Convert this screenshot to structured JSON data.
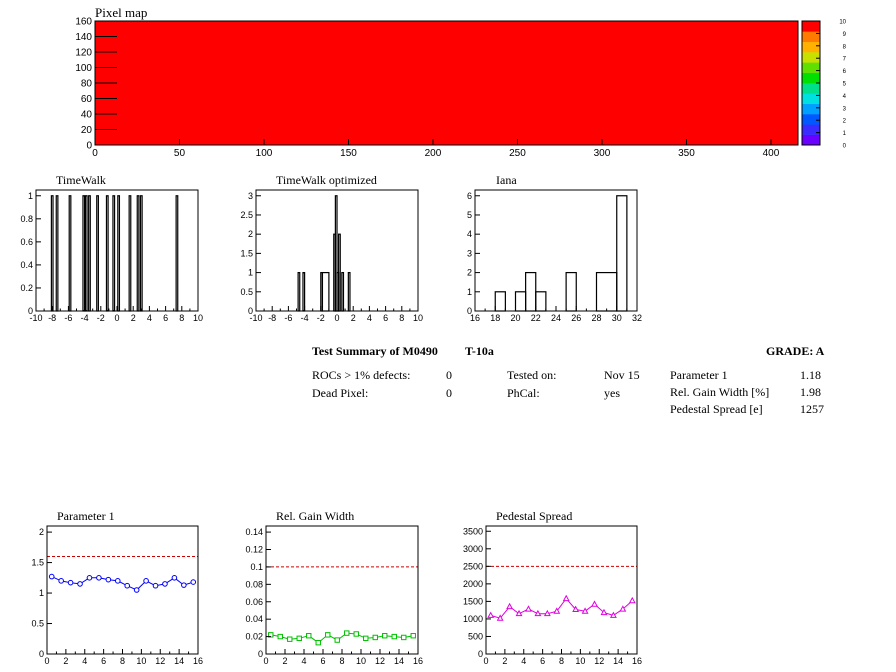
{
  "pixel_map": {
    "title": "Pixel map",
    "fill_color": "#ff0000",
    "x_ticks": [
      0,
      50,
      100,
      150,
      200,
      250,
      300,
      350,
      400
    ],
    "y_ticks": [
      0,
      20,
      40,
      60,
      80,
      100,
      120,
      140,
      160
    ],
    "xlim": [
      0,
      416
    ],
    "ylim": [
      0,
      160
    ],
    "palette_ticks": [
      0,
      1,
      2,
      3,
      4,
      5,
      6,
      7,
      8,
      9,
      10
    ],
    "palette_colors": [
      "#6a00ff",
      "#3a2cff",
      "#0059ff",
      "#00a0ff",
      "#00e0e0",
      "#00e08a",
      "#00e000",
      "#60e000",
      "#c8e000",
      "#ffb000",
      "#ff7a00",
      "#ff0000"
    ]
  },
  "chart_data": [
    {
      "type": "bar",
      "title": "TimeWalk",
      "xlim": [
        -10,
        10
      ],
      "ylim": [
        0,
        1.05
      ],
      "x_ticks": [
        -10,
        -8,
        -6,
        -4,
        -2,
        0,
        2,
        4,
        6,
        8,
        10
      ],
      "y_ticks": [
        0,
        0.2,
        0.4,
        0.6,
        0.8,
        1
      ],
      "y_tick_labels": [
        "0",
        "0.2",
        "0.4",
        "0.6",
        "0.8",
        "1"
      ],
      "bins": [
        {
          "x0": -8.1,
          "x1": -7.9,
          "y": 1
        },
        {
          "x0": -7.5,
          "x1": -7.3,
          "y": 1
        },
        {
          "x0": -5.9,
          "x1": -5.7,
          "y": 1
        },
        {
          "x0": -4.2,
          "x1": -4.0,
          "y": 1
        },
        {
          "x0": -3.9,
          "x1": -3.7,
          "y": 1
        },
        {
          "x0": -3.5,
          "x1": -3.3,
          "y": 1
        },
        {
          "x0": -2.5,
          "x1": -2.3,
          "y": 1
        },
        {
          "x0": -1.3,
          "x1": -1.1,
          "y": 1
        },
        {
          "x0": -0.5,
          "x1": -0.3,
          "y": 1
        },
        {
          "x0": 0.1,
          "x1": 0.3,
          "y": 1
        },
        {
          "x0": 1.5,
          "x1": 1.7,
          "y": 1
        },
        {
          "x0": 2.5,
          "x1": 2.7,
          "y": 1
        },
        {
          "x0": 2.9,
          "x1": 3.1,
          "y": 1
        },
        {
          "x0": 7.3,
          "x1": 7.5,
          "y": 1
        }
      ]
    },
    {
      "type": "bar",
      "title": "TimeWalk optimized",
      "xlim": [
        -10,
        10
      ],
      "ylim": [
        0,
        3.15
      ],
      "x_ticks": [
        -10,
        -8,
        -6,
        -4,
        -2,
        0,
        2,
        4,
        6,
        8,
        10
      ],
      "y_ticks": [
        0,
        0.5,
        1,
        1.5,
        2,
        2.5,
        3
      ],
      "y_tick_labels": [
        "0",
        "0.5",
        "1",
        "1.5",
        "2",
        "2.5",
        "3"
      ],
      "bins": [
        {
          "x0": -4.8,
          "x1": -4.6,
          "y": 1
        },
        {
          "x0": -4.2,
          "x1": -4.0,
          "y": 1
        },
        {
          "x0": -2.0,
          "x1": -1.8,
          "y": 1
        },
        {
          "x0": -1.8,
          "x1": -1.0,
          "y": 1
        },
        {
          "x0": -0.4,
          "x1": -0.2,
          "y": 2
        },
        {
          "x0": -0.2,
          "x1": 0.0,
          "y": 3
        },
        {
          "x0": 0.0,
          "x1": 0.2,
          "y": 1
        },
        {
          "x0": 0.2,
          "x1": 0.4,
          "y": 2
        },
        {
          "x0": 0.6,
          "x1": 0.8,
          "y": 1
        },
        {
          "x0": 1.4,
          "x1": 1.6,
          "y": 1
        }
      ]
    },
    {
      "type": "bar",
      "title": "Iana",
      "xlim": [
        16,
        32
      ],
      "ylim": [
        0,
        6.3
      ],
      "x_ticks": [
        16,
        18,
        20,
        22,
        24,
        26,
        28,
        30,
        32
      ],
      "y_ticks": [
        0,
        1,
        2,
        3,
        4,
        5,
        6
      ],
      "y_tick_labels": [
        "0",
        "1",
        "2",
        "3",
        "4",
        "5",
        "6"
      ],
      "bins": [
        {
          "x0": 18,
          "x1": 19,
          "y": 1
        },
        {
          "x0": 20,
          "x1": 21,
          "y": 1
        },
        {
          "x0": 21,
          "x1": 22,
          "y": 2
        },
        {
          "x0": 22,
          "x1": 23,
          "y": 1
        },
        {
          "x0": 25,
          "x1": 26,
          "y": 2
        },
        {
          "x0": 28,
          "x1": 30,
          "y": 2
        },
        {
          "x0": 30,
          "x1": 31,
          "y": 6
        }
      ]
    },
    {
      "type": "line",
      "title": "Parameter 1",
      "xlim": [
        0,
        16
      ],
      "ylim": [
        0,
        2.1
      ],
      "x_ticks": [
        0,
        2,
        4,
        6,
        8,
        10,
        12,
        14,
        16
      ],
      "y_ticks": [
        0,
        0.5,
        1,
        1.5,
        2
      ],
      "y_tick_labels": [
        "0",
        "0.5",
        "1",
        "1.5",
        "2"
      ],
      "series_color": "#0000ff",
      "marker": "circle",
      "threshold": 1.6,
      "x": [
        0.5,
        1.5,
        2.5,
        3.5,
        4.5,
        5.5,
        6.5,
        7.5,
        8.5,
        9.5,
        10.5,
        11.5,
        12.5,
        13.5,
        14.5,
        15.5
      ],
      "values": [
        1.27,
        1.2,
        1.17,
        1.15,
        1.25,
        1.25,
        1.22,
        1.2,
        1.12,
        1.05,
        1.2,
        1.12,
        1.15,
        1.25,
        1.13,
        1.18
      ]
    },
    {
      "type": "line",
      "title": "Rel. Gain Width",
      "xlim": [
        0,
        16
      ],
      "ylim": [
        0,
        0.147
      ],
      "x_ticks": [
        0,
        2,
        4,
        6,
        8,
        10,
        12,
        14,
        16
      ],
      "y_ticks": [
        0,
        0.02,
        0.04,
        0.06,
        0.08,
        0.1,
        0.12,
        0.14
      ],
      "y_tick_labels": [
        "0",
        "0.02",
        "0.04",
        "0.06",
        "0.08",
        "0.1",
        "0.12",
        "0.14"
      ],
      "series_color": "#00c000",
      "marker": "square",
      "threshold": 0.1,
      "x": [
        0.5,
        1.5,
        2.5,
        3.5,
        4.5,
        5.5,
        6.5,
        7.5,
        8.5,
        9.5,
        10.5,
        11.5,
        12.5,
        13.5,
        14.5,
        15.5
      ],
      "values": [
        0.022,
        0.02,
        0.017,
        0.018,
        0.021,
        0.013,
        0.022,
        0.016,
        0.024,
        0.023,
        0.018,
        0.019,
        0.021,
        0.02,
        0.019,
        0.021
      ]
    },
    {
      "type": "line",
      "title": "Pedestal Spread",
      "xlim": [
        0,
        16
      ],
      "ylim": [
        0,
        3650
      ],
      "x_ticks": [
        0,
        2,
        4,
        6,
        8,
        10,
        12,
        14,
        16
      ],
      "y_ticks": [
        0,
        500,
        1000,
        1500,
        2000,
        2500,
        3000,
        3500
      ],
      "y_tick_labels": [
        "0",
        "500",
        "1000",
        "1500",
        "2000",
        "2500",
        "3000",
        "3500"
      ],
      "series_color": "#e000e0",
      "marker": "triangle",
      "threshold": 2500,
      "x": [
        0.5,
        1.5,
        2.5,
        3.5,
        4.5,
        5.5,
        6.5,
        7.5,
        8.5,
        9.5,
        10.5,
        11.5,
        12.5,
        13.5,
        14.5,
        15.5
      ],
      "values": [
        1100,
        1020,
        1350,
        1150,
        1280,
        1150,
        1150,
        1220,
        1580,
        1270,
        1220,
        1420,
        1180,
        1100,
        1280,
        1520
      ]
    }
  ],
  "summary": {
    "title": "Test Summary of M0490",
    "test": "T-10a",
    "grade": "GRADE:  A",
    "rows": [
      {
        "label": "ROCs > 1% defects:",
        "value": "0"
      },
      {
        "label": "Dead Pixel:",
        "value": "0"
      }
    ],
    "info": [
      {
        "label": "Tested on:",
        "value": "Nov 15"
      },
      {
        "label": "PhCal:",
        "value": "yes"
      }
    ],
    "params": [
      {
        "label": "Parameter 1",
        "value": "1.18"
      },
      {
        "label": "Rel. Gain Width [%]",
        "value": "1.98"
      },
      {
        "label": "Pedestal Spread [e]",
        "value": "1257"
      }
    ]
  }
}
